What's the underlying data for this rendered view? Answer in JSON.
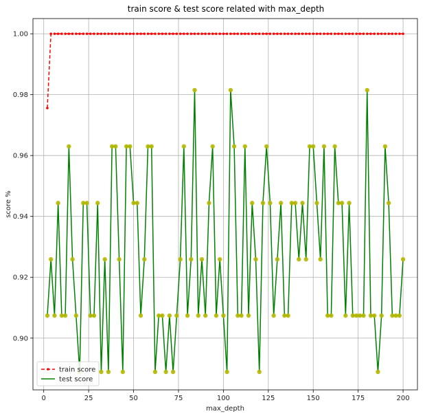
{
  "chart_data": {
    "type": "line",
    "title": "train score & test score related with max_depth",
    "xlabel": "max_depth",
    "ylabel": "score %",
    "xlim": [
      -6,
      208
    ],
    "ylim": [
      0.883,
      1.005
    ],
    "xticks": [
      0,
      25,
      50,
      75,
      100,
      125,
      150,
      175,
      200
    ],
    "yticks": [
      0.9,
      0.92,
      0.94,
      0.96,
      0.98,
      1.0
    ],
    "xtick_labels": [
      "0",
      "25",
      "50",
      "75",
      "100",
      "125",
      "150",
      "175",
      "200"
    ],
    "ytick_labels": [
      "0.90",
      "0.92",
      "0.94",
      "0.96",
      "0.98",
      "1.00"
    ],
    "grid": true,
    "legend_position": "bottom-left",
    "x": [
      2,
      4,
      6,
      8,
      10,
      12,
      14,
      16,
      18,
      20,
      22,
      24,
      26,
      28,
      30,
      32,
      34,
      36,
      38,
      40,
      42,
      44,
      46,
      48,
      50,
      52,
      54,
      56,
      58,
      60,
      62,
      64,
      66,
      68,
      70,
      72,
      74,
      76,
      78,
      80,
      82,
      84,
      86,
      88,
      90,
      92,
      94,
      96,
      98,
      100,
      102,
      104,
      106,
      108,
      110,
      112,
      114,
      116,
      118,
      120,
      122,
      124,
      126,
      128,
      130,
      132,
      134,
      136,
      138,
      140,
      142,
      144,
      146,
      148,
      150,
      152,
      154,
      156,
      158,
      160,
      162,
      164,
      166,
      168,
      170,
      172,
      174,
      176,
      178,
      180,
      182,
      184,
      186,
      188,
      190,
      192,
      194,
      196,
      198,
      200
    ],
    "series": [
      {
        "name": "train score",
        "color": "#ff0000",
        "style": "dashed",
        "marker": "dot",
        "values": [
          0.9756,
          1.0,
          1.0,
          1.0,
          1.0,
          1.0,
          1.0,
          1.0,
          1.0,
          1.0,
          1.0,
          1.0,
          1.0,
          1.0,
          1.0,
          1.0,
          1.0,
          1.0,
          1.0,
          1.0,
          1.0,
          1.0,
          1.0,
          1.0,
          1.0,
          1.0,
          1.0,
          1.0,
          1.0,
          1.0,
          1.0,
          1.0,
          1.0,
          1.0,
          1.0,
          1.0,
          1.0,
          1.0,
          1.0,
          1.0,
          1.0,
          1.0,
          1.0,
          1.0,
          1.0,
          1.0,
          1.0,
          1.0,
          1.0,
          1.0,
          1.0,
          1.0,
          1.0,
          1.0,
          1.0,
          1.0,
          1.0,
          1.0,
          1.0,
          1.0,
          1.0,
          1.0,
          1.0,
          1.0,
          1.0,
          1.0,
          1.0,
          1.0,
          1.0,
          1.0,
          1.0,
          1.0,
          1.0,
          1.0,
          1.0,
          1.0,
          1.0,
          1.0,
          1.0,
          1.0,
          1.0,
          1.0,
          1.0,
          1.0,
          1.0,
          1.0,
          1.0,
          1.0,
          1.0,
          1.0,
          1.0,
          1.0,
          1.0,
          1.0,
          1.0,
          1.0,
          1.0,
          1.0,
          1.0,
          1.0
        ]
      },
      {
        "name": "test score",
        "color": "#008000",
        "style": "solid",
        "marker": "circle",
        "marker_color": "#b5b800",
        "values": [
          0.9074,
          0.9259,
          0.9074,
          0.9444,
          0.9074,
          0.9074,
          0.963,
          0.9259,
          0.9074,
          0.8889,
          0.9444,
          0.9444,
          0.9074,
          0.9074,
          0.9444,
          0.8889,
          0.9259,
          0.8889,
          0.963,
          0.963,
          0.9259,
          0.8889,
          0.963,
          0.963,
          0.9444,
          0.9444,
          0.9074,
          0.9259,
          0.963,
          0.963,
          0.8889,
          0.9074,
          0.9074,
          0.8889,
          0.9074,
          0.8889,
          0.9074,
          0.9259,
          0.963,
          0.9074,
          0.9259,
          0.9815,
          0.9074,
          0.9259,
          0.9074,
          0.9444,
          0.963,
          0.9074,
          0.9259,
          0.9074,
          0.8889,
          0.9815,
          0.963,
          0.9074,
          0.9074,
          0.963,
          0.9074,
          0.9444,
          0.9259,
          0.8889,
          0.9444,
          0.963,
          0.9444,
          0.9074,
          0.9259,
          0.9444,
          0.9074,
          0.9074,
          0.9444,
          0.9444,
          0.9259,
          0.9444,
          0.9259,
          0.963,
          0.963,
          0.9444,
          0.9259,
          0.963,
          0.9074,
          0.9074,
          0.963,
          0.9444,
          0.9444,
          0.9074,
          0.9444,
          0.9074,
          0.9074,
          0.9074,
          0.9074,
          0.9815,
          0.9074,
          0.9074,
          0.8889,
          0.9074,
          0.963,
          0.9444,
          0.9074,
          0.9074,
          0.9074,
          0.9259
        ]
      }
    ]
  }
}
